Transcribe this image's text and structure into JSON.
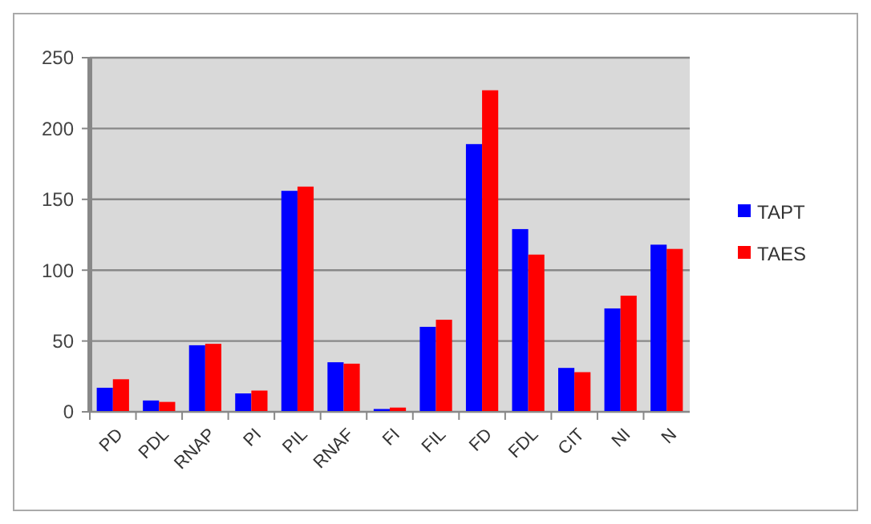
{
  "chart_data": {
    "type": "bar",
    "categories": [
      "PD",
      "PDL",
      "RNAP",
      "PI",
      "PIL",
      "RNAF",
      "FI",
      "FIL",
      "FD",
      "FDL",
      "CIT",
      "NI",
      "N"
    ],
    "series": [
      {
        "name": "TAPT",
        "color": "#0000ff",
        "values": [
          17,
          8,
          47,
          13,
          156,
          35,
          2,
          60,
          189,
          129,
          31,
          73,
          118
        ]
      },
      {
        "name": "TAES",
        "color": "#ff0000",
        "values": [
          23,
          7,
          48,
          15,
          159,
          34,
          3,
          65,
          227,
          111,
          28,
          82,
          115
        ]
      }
    ],
    "ylim": [
      0,
      250
    ],
    "yticks": [
      0,
      50,
      100,
      150,
      200,
      250
    ],
    "grid": "y",
    "legend": "right"
  }
}
